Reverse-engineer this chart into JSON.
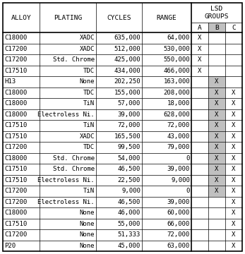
{
  "columns": [
    "ALLOY",
    "PLATING",
    "CYCLES",
    "RANGE",
    "A",
    "B",
    "C"
  ],
  "rows": [
    [
      "C18000",
      "XADC",
      "635,000",
      "64,000",
      "X",
      "",
      ""
    ],
    [
      "C17200",
      "XADC",
      "512,000",
      "530,000",
      "X",
      "",
      ""
    ],
    [
      "C17200",
      "Std. Chrome",
      "425,000",
      "550,000",
      "X",
      "",
      ""
    ],
    [
      "C17510",
      "TDC",
      "434,000",
      "466,000",
      "X",
      "",
      ""
    ],
    [
      "H13",
      "None",
      "202,250",
      "163,000",
      "",
      "X",
      ""
    ],
    [
      "C18000",
      "TDC",
      "155,000",
      "208,000",
      "",
      "X",
      "X"
    ],
    [
      "C18000",
      "TiN",
      "57,000",
      "18,000",
      "",
      "X",
      "X"
    ],
    [
      "C18000",
      "Electroless Ni.",
      "39,000",
      "628,000",
      "",
      "X",
      "X"
    ],
    [
      "C17510",
      "TiN",
      "72,000",
      "72,000",
      "",
      "X",
      "X"
    ],
    [
      "C17510",
      "XADC",
      "165,500",
      "43,000",
      "",
      "X",
      "X"
    ],
    [
      "C17200",
      "TDC",
      "99,500",
      "79,000",
      "",
      "X",
      "X"
    ],
    [
      "C18000",
      "Std. Chrome",
      "54,000",
      "0",
      "",
      "X",
      "X"
    ],
    [
      "C17510",
      "Std. Chrome",
      "46,500",
      "39,000",
      "",
      "X",
      "X"
    ],
    [
      "C17510",
      "Electroless Ni.",
      "22,500",
      "9,000",
      "",
      "X",
      "X"
    ],
    [
      "C17200",
      "TiN",
      "9,000",
      "0",
      "",
      "X",
      "X"
    ],
    [
      "C17200",
      "Electroless Ni.",
      "46,500",
      "39,000",
      "",
      "",
      "X"
    ],
    [
      "C18000",
      "None",
      "46,000",
      "60,000",
      "",
      "",
      "X"
    ],
    [
      "C17510",
      "None",
      "55,000",
      "66,000",
      "",
      "",
      "X"
    ],
    [
      "C17200",
      "None",
      "51,333",
      "72,000",
      "",
      "",
      "X"
    ],
    [
      "P20",
      "None",
      "45,000",
      "63,000",
      "",
      "",
      "X"
    ]
  ],
  "col_aligns": [
    "left",
    "right",
    "right",
    "right",
    "center",
    "center",
    "center"
  ],
  "group_B_bg": "#c0c0c0",
  "fontsize": 6.5,
  "header_fontsize": 6.8,
  "border_color": "#000000",
  "thick_line": 1.2,
  "thin_line": 0.5
}
